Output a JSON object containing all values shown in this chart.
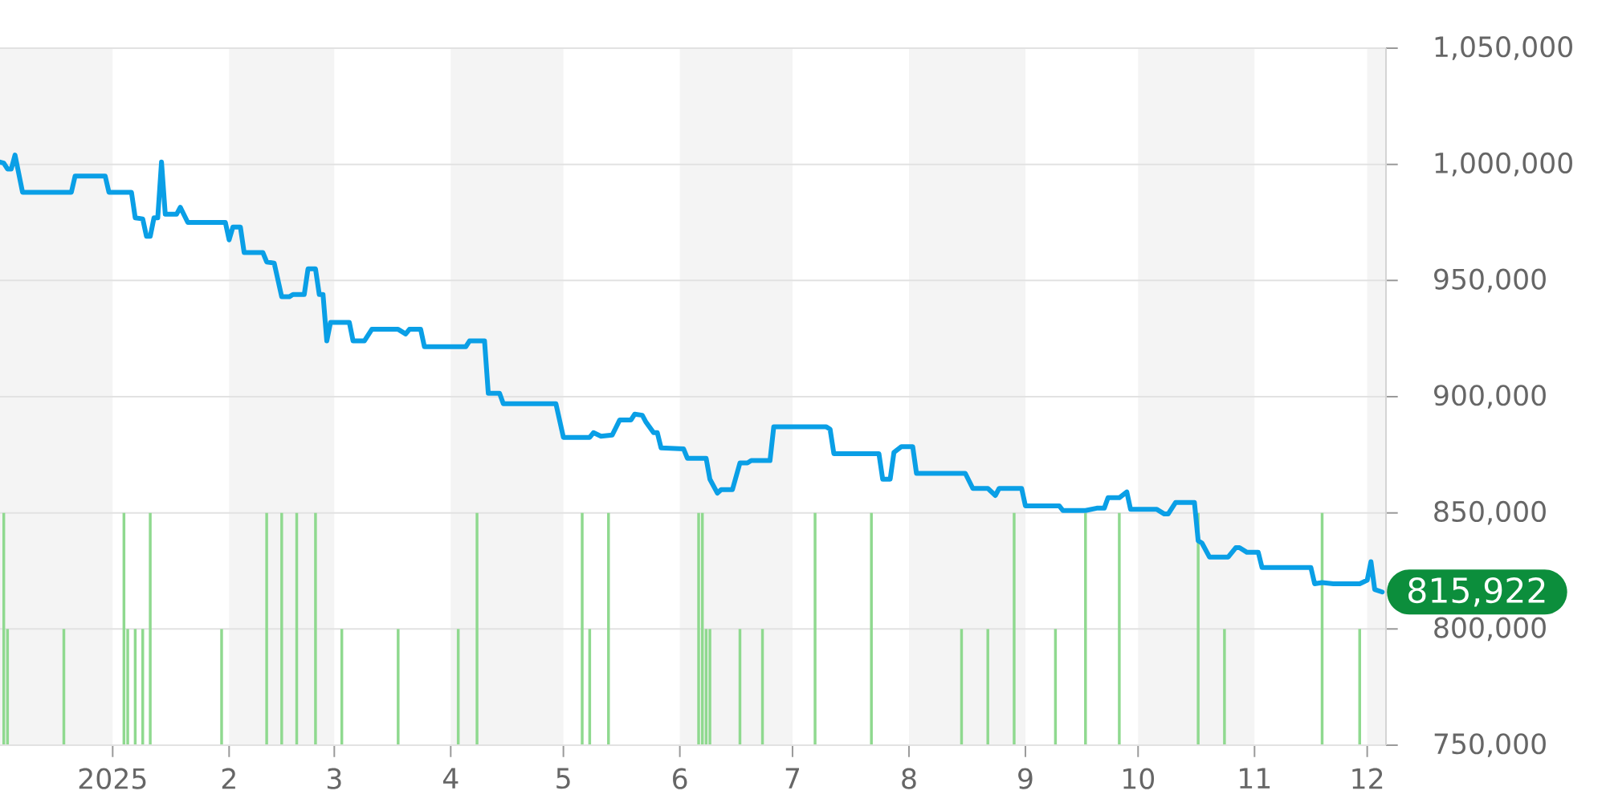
{
  "chart_data": {
    "type": "line",
    "xlim": [
      "2024-12-02",
      "2025-12-06"
    ],
    "ylim": [
      750000,
      1050000
    ],
    "xticks": [
      {
        "value": "2025-01-01",
        "label": "2025"
      },
      {
        "value": "2025-02-01",
        "label": "2"
      },
      {
        "value": "2025-03-01",
        "label": "3"
      },
      {
        "value": "2025-04-01",
        "label": "4"
      },
      {
        "value": "2025-05-01",
        "label": "5"
      },
      {
        "value": "2025-06-01",
        "label": "6"
      },
      {
        "value": "2025-07-01",
        "label": "7"
      },
      {
        "value": "2025-08-01",
        "label": "8"
      },
      {
        "value": "2025-09-01",
        "label": "9"
      },
      {
        "value": "2025-10-01",
        "label": "10"
      },
      {
        "value": "2025-11-01",
        "label": "11"
      },
      {
        "value": "2025-12-01",
        "label": "12"
      }
    ],
    "yticks": [
      {
        "value": 750000,
        "label": "750,000"
      },
      {
        "value": 800000,
        "label": "800,000"
      },
      {
        "value": 850000,
        "label": "850,000"
      },
      {
        "value": 900000,
        "label": "900,000"
      },
      {
        "value": 950000,
        "label": "950,000"
      },
      {
        "value": 1000000,
        "label": "1,000,000"
      },
      {
        "value": 1050000,
        "label": "1,050,000"
      }
    ],
    "grid": "y",
    "bands": [
      {
        "axis": "x",
        "from": "2024-12-02",
        "to": "2025-01-01",
        "color": "#f4f4f4"
      },
      {
        "axis": "x",
        "from": "2025-02-01",
        "to": "2025-03-01",
        "color": "#f4f4f4"
      },
      {
        "axis": "x",
        "from": "2025-04-01",
        "to": "2025-05-01",
        "color": "#f4f4f4"
      },
      {
        "axis": "x",
        "from": "2025-06-01",
        "to": "2025-07-01",
        "color": "#f4f4f4"
      },
      {
        "axis": "x",
        "from": "2025-08-01",
        "to": "2025-09-01",
        "color": "#f4f4f4"
      },
      {
        "axis": "x",
        "from": "2025-10-01",
        "to": "2025-11-01",
        "color": "#f4f4f4"
      },
      {
        "axis": "x",
        "from": "2025-12-01",
        "to": "2025-12-06",
        "color": "#f4f4f4"
      }
    ],
    "annotations": [
      {
        "text": "815,922",
        "x": "2025-12-05",
        "y": 815922
      }
    ],
    "series": [
      {
        "color": "#0a9fe6",
        "x": [
          "2024-12-02",
          "2024-12-03",
          "2024-12-04",
          "2024-12-05",
          "2024-12-06",
          "2024-12-08",
          "2024-12-21",
          "2024-12-22",
          "2024-12-30",
          "2024-12-31",
          "2025-01-06",
          "2025-01-07",
          "2025-01-09",
          "2025-01-10",
          "2025-01-11",
          "2025-01-12",
          "2025-01-13",
          "2025-01-14",
          "2025-01-15",
          "2025-01-18",
          "2025-01-19",
          "2025-01-21",
          "2025-01-31",
          "2025-02-01",
          "2025-02-02",
          "2025-02-04",
          "2025-02-05",
          "2025-02-10",
          "2025-02-11",
          "2025-02-13",
          "2025-02-15",
          "2025-02-17",
          "2025-02-18",
          "2025-02-21",
          "2025-02-22",
          "2025-02-24",
          "2025-02-25",
          "2025-02-26",
          "2025-02-27",
          "2025-02-28",
          "2025-03-05",
          "2025-03-06",
          "2025-03-09",
          "2025-03-11",
          "2025-03-18",
          "2025-03-20",
          "2025-03-21",
          "2025-03-24",
          "2025-03-25",
          "2025-04-05",
          "2025-04-06",
          "2025-04-10",
          "2025-04-11",
          "2025-04-14",
          "2025-04-15",
          "2025-04-29",
          "2025-05-01",
          "2025-05-08",
          "2025-05-09",
          "2025-05-11",
          "2025-05-14",
          "2025-05-16",
          "2025-05-19",
          "2025-05-20",
          "2025-05-22",
          "2025-05-23",
          "2025-05-25",
          "2025-05-26",
          "2025-05-27",
          "2025-06-02",
          "2025-06-03",
          "2025-06-08",
          "2025-06-09",
          "2025-06-11",
          "2025-06-12",
          "2025-06-15",
          "2025-06-17",
          "2025-06-19",
          "2025-06-20",
          "2025-06-25",
          "2025-06-26",
          "2025-07-10",
          "2025-07-11",
          "2025-07-12",
          "2025-07-24",
          "2025-07-25",
          "2025-07-27",
          "2025-07-28",
          "2025-07-30",
          "2025-08-02",
          "2025-08-03",
          "2025-08-16",
          "2025-08-18",
          "2025-08-22",
          "2025-08-24",
          "2025-08-25",
          "2025-08-31",
          "2025-09-01",
          "2025-09-10",
          "2025-09-11",
          "2025-09-17",
          "2025-09-20",
          "2025-09-22",
          "2025-09-23",
          "2025-09-26",
          "2025-09-28",
          "2025-09-29",
          "2025-10-06",
          "2025-10-08",
          "2025-10-09",
          "2025-10-11",
          "2025-10-16",
          "2025-10-17",
          "2025-10-18",
          "2025-10-20",
          "2025-10-25",
          "2025-10-27",
          "2025-10-28",
          "2025-10-30",
          "2025-11-02",
          "2025-11-03",
          "2025-11-16",
          "2025-11-17",
          "2025-11-19",
          "2025-11-22",
          "2025-11-29",
          "2025-12-01",
          "2025-12-02",
          "2025-12-03",
          "2025-12-05"
        ],
        "values": [
          1001000,
          1000500,
          998000,
          998000,
          1004000,
          988000,
          988000,
          995000,
          995000,
          988000,
          988000,
          977000,
          976500,
          969000,
          969000,
          977000,
          977000,
          1001000,
          978500,
          978500,
          981500,
          975000,
          975000,
          967500,
          973000,
          973000,
          962000,
          962000,
          958000,
          957500,
          943000,
          943000,
          944000,
          944000,
          955000,
          955000,
          944000,
          944000,
          924000,
          932000,
          932000,
          924000,
          924000,
          929000,
          929000,
          927000,
          929000,
          929000,
          921500,
          921500,
          924000,
          924000,
          901500,
          901500,
          897000,
          897000,
          882500,
          882500,
          884500,
          883000,
          883500,
          890000,
          890000,
          892500,
          892000,
          889000,
          884500,
          884500,
          878000,
          877500,
          873500,
          873500,
          864500,
          858500,
          860000,
          860000,
          871500,
          871500,
          872500,
          872500,
          887000,
          887000,
          886000,
          875500,
          875500,
          864500,
          864500,
          876000,
          878500,
          878500,
          867000,
          867000,
          860500,
          860500,
          857500,
          860500,
          860500,
          853000,
          853000,
          851000,
          851000,
          852000,
          852000,
          856500,
          856500,
          859000,
          851500,
          851500,
          849500,
          849500,
          854500,
          854500,
          838000,
          837000,
          831000,
          831000,
          835000,
          835000,
          833000,
          833000,
          826500,
          826500,
          819500,
          820000,
          819500,
          819500,
          821000,
          829000,
          817000,
          815922
        ]
      },
      {
        "type": "bar",
        "color": "#8fd98f",
        "x": [
          "2024-12-03",
          "2024-12-04",
          "2024-12-19",
          "2025-01-04",
          "2025-01-05",
          "2025-01-07",
          "2025-01-09",
          "2025-01-11",
          "2025-01-30",
          "2025-02-11",
          "2025-02-15",
          "2025-02-19",
          "2025-02-24",
          "2025-03-03",
          "2025-03-18",
          "2025-04-03",
          "2025-04-08",
          "2025-05-06",
          "2025-05-08",
          "2025-05-13",
          "2025-06-06",
          "2025-06-07",
          "2025-06-08",
          "2025-06-09",
          "2025-06-17",
          "2025-06-23",
          "2025-07-07",
          "2025-07-22",
          "2025-08-15",
          "2025-08-22",
          "2025-08-29",
          "2025-09-09",
          "2025-09-17",
          "2025-09-26",
          "2025-10-17",
          "2025-10-24",
          "2025-11-19",
          "2025-11-29"
        ],
        "values": [
          850000,
          800000,
          800000,
          850000,
          800000,
          800000,
          800000,
          850000,
          800000,
          850000,
          850000,
          850000,
          850000,
          800000,
          800000,
          800000,
          850000,
          850000,
          800000,
          850000,
          850000,
          850000,
          800000,
          800000,
          800000,
          800000,
          850000,
          850000,
          800000,
          800000,
          850000,
          800000,
          850000,
          850000,
          850000,
          800000,
          850000,
          800000
        ]
      }
    ]
  }
}
